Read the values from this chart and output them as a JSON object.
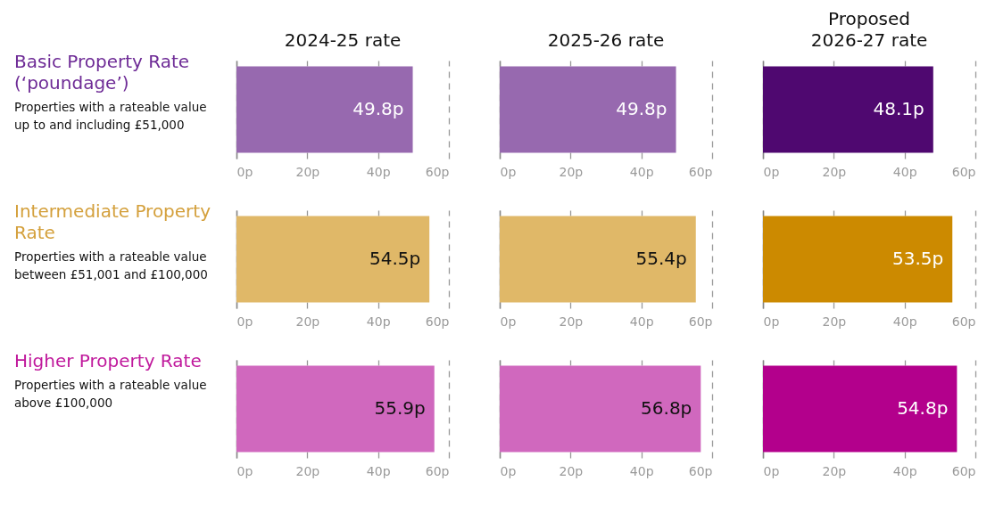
{
  "chart_data": [
    {
      "type": "other",
      "title": "Basic Property Rate\n(‘poundage’)",
      "subtitle": "Properties with a rateable value\nup to and including £51,000",
      "color": "#6e2b96"
    },
    {
      "type": "bar",
      "title": "2024-25 rate",
      "orientation": "horizontal",
      "categories": [
        null
      ],
      "values": [
        49.8
      ],
      "color": "#9769af",
      "value_labels": [
        "49.8p"
      ],
      "xlim": [
        0,
        60
      ],
      "xticks": [
        {
          "value": 0,
          "label": "0p"
        },
        {
          "value": 20,
          "label": "20p"
        },
        {
          "value": 40,
          "label": "40p"
        },
        {
          "value": 60,
          "label": "60p"
        }
      ],
      "grid": "x",
      "tick_labels": "x"
    },
    {
      "type": "bar",
      "title": "2025-26 rate",
      "orientation": "horizontal",
      "categories": [
        null
      ],
      "values": [
        49.8
      ],
      "color": "#9769af",
      "value_labels": [
        "49.8p"
      ],
      "xlim": [
        0,
        60
      ],
      "xticks": [
        {
          "value": 0,
          "label": "0p"
        },
        {
          "value": 20,
          "label": "20p"
        },
        {
          "value": 40,
          "label": "40p"
        },
        {
          "value": 60,
          "label": "60p"
        }
      ],
      "grid": "x",
      "tick_labels": "x"
    },
    {
      "type": "bar",
      "title": "Proposed\n2026-27 rate",
      "orientation": "horizontal",
      "categories": [
        null
      ],
      "values": [
        48.1
      ],
      "color": "#4f0870",
      "value_labels": [
        "48.1p"
      ],
      "xlim": [
        0,
        60
      ],
      "xticks": [
        {
          "value": 0,
          "label": "0p"
        },
        {
          "value": 20,
          "label": "20p"
        },
        {
          "value": 40,
          "label": "40p"
        },
        {
          "value": 60,
          "label": "60p"
        }
      ],
      "grid": "x",
      "tick_labels": "x"
    },
    {
      "type": "other",
      "title": "Intermediate Property\nRate",
      "subtitle": "Properties with a rateable value\nbetween £51,001 and £100,000",
      "color": "#d4a03c"
    },
    {
      "type": "bar",
      "orientation": "horizontal",
      "categories": [
        null
      ],
      "values": [
        54.5
      ],
      "color": "#e0b868",
      "value_labels": [
        "54.5p"
      ],
      "xlim": [
        0,
        60
      ],
      "xticks": [
        {
          "value": 0,
          "label": "0p"
        },
        {
          "value": 20,
          "label": "20p"
        },
        {
          "value": 40,
          "label": "40p"
        },
        {
          "value": 60,
          "label": "60p"
        }
      ],
      "grid": "x",
      "tick_labels": "x"
    },
    {
      "type": "bar",
      "orientation": "horizontal",
      "categories": [
        null
      ],
      "values": [
        55.4
      ],
      "color": "#e0b868",
      "value_labels": [
        "55.4p"
      ],
      "xlim": [
        0,
        60
      ],
      "xticks": [
        {
          "value": 0,
          "label": "0p"
        },
        {
          "value": 20,
          "label": "20p"
        },
        {
          "value": 40,
          "label": "40p"
        },
        {
          "value": 60,
          "label": "60p"
        }
      ],
      "grid": "x",
      "tick_labels": "x"
    },
    {
      "type": "bar",
      "orientation": "horizontal",
      "categories": [
        null
      ],
      "values": [
        53.5
      ],
      "color": "#cc8a00",
      "value_labels": [
        "53.5p"
      ],
      "xlim": [
        0,
        60
      ],
      "xticks": [
        {
          "value": 0,
          "label": "0p"
        },
        {
          "value": 20,
          "label": "20p"
        },
        {
          "value": 40,
          "label": "40p"
        },
        {
          "value": 60,
          "label": "60p"
        }
      ],
      "grid": "x",
      "tick_labels": "x"
    },
    {
      "type": "other",
      "title": "Higher Property Rate",
      "subtitle": "Properties with a rateable value\nabove £100,000",
      "color": "#c0199c"
    },
    {
      "type": "bar",
      "orientation": "horizontal",
      "categories": [
        null
      ],
      "values": [
        55.9
      ],
      "color": "#d068be",
      "value_labels": [
        "55.9p"
      ],
      "xlim": [
        0,
        60
      ],
      "xticks": [
        {
          "value": 0,
          "label": "0p"
        },
        {
          "value": 20,
          "label": "20p"
        },
        {
          "value": 40,
          "label": "40p"
        },
        {
          "value": 60,
          "label": "60p"
        }
      ],
      "grid": "x",
      "tick_labels": "x"
    },
    {
      "type": "bar",
      "orientation": "horizontal",
      "categories": [
        null
      ],
      "values": [
        56.8
      ],
      "color": "#d068be",
      "value_labels": [
        "56.8p"
      ],
      "xlim": [
        0,
        60
      ],
      "xticks": [
        {
          "value": 0,
          "label": "0p"
        },
        {
          "value": 20,
          "label": "20p"
        },
        {
          "value": 40,
          "label": "40p"
        },
        {
          "value": 60,
          "label": "60p"
        }
      ],
      "grid": "x",
      "tick_labels": "x"
    },
    {
      "type": "bar",
      "orientation": "horizontal",
      "categories": [
        null
      ],
      "values": [
        54.8
      ],
      "color": "#b3008c",
      "value_labels": [
        "54.8p"
      ],
      "xlim": [
        0,
        60
      ],
      "xticks": [
        {
          "value": 0,
          "label": "0p"
        },
        {
          "value": 20,
          "label": "20p"
        },
        {
          "value": 40,
          "label": "40p"
        },
        {
          "value": 60,
          "label": "60p"
        }
      ],
      "grid": "x",
      "tick_labels": "x"
    }
  ]
}
